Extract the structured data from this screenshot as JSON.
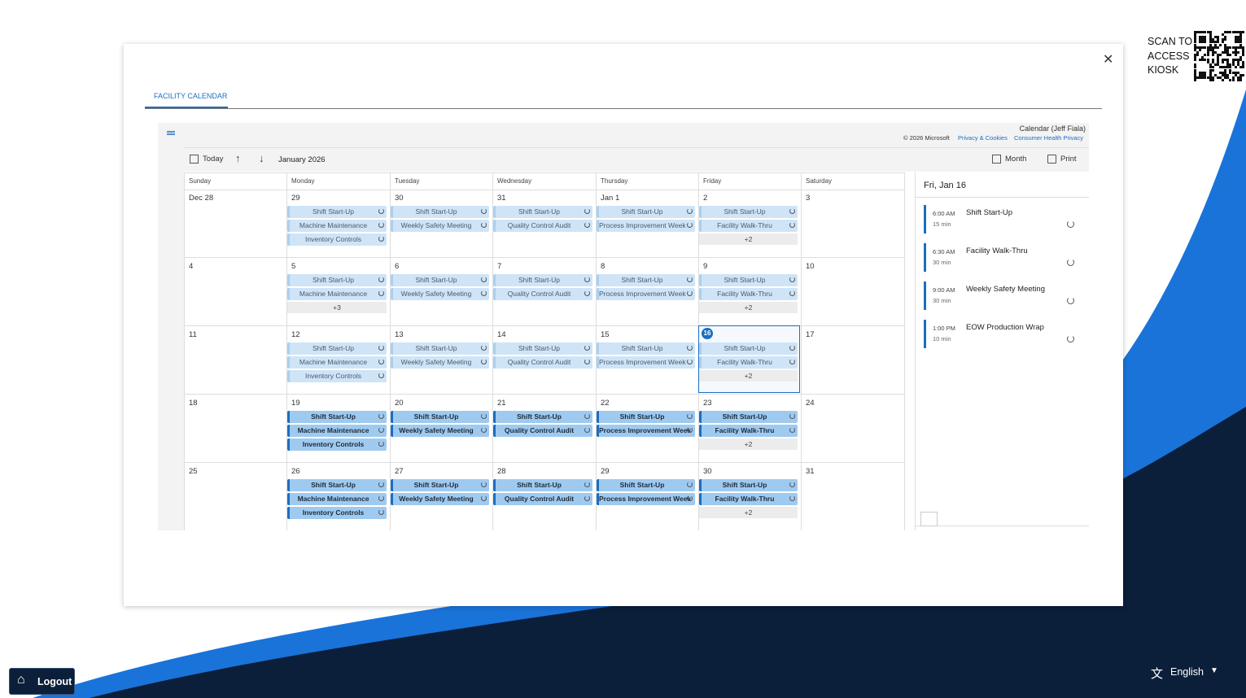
{
  "kiosk": {
    "scan_lines": [
      "SCAN TO",
      "ACCESS",
      "KIOSK"
    ]
  },
  "tab": "FACILITY CALENDAR",
  "calendar": {
    "owner": "Calendar (Jeff Fiala)",
    "copyright": "© 2026 Microsoft",
    "links": [
      "Privacy & Cookies",
      "Consumer Health Privacy"
    ],
    "toolbar": {
      "today": "Today",
      "month": "January 2026",
      "view": "Month",
      "print": "Print"
    },
    "weekdays": [
      "Sunday",
      "Monday",
      "Tuesday",
      "Wednesday",
      "Thursday",
      "Friday",
      "Saturday"
    ],
    "weeks": [
      [
        {
          "date": "Dec 28",
          "events": []
        },
        {
          "date": "29",
          "events": [
            "Shift Start-Up",
            "Machine Maintenance",
            "Inventory Controls"
          ]
        },
        {
          "date": "30",
          "events": [
            "Shift Start-Up",
            "Weekly Safety Meeting"
          ]
        },
        {
          "date": "31",
          "events": [
            "Shift Start-Up",
            "Quality Control Audit"
          ]
        },
        {
          "date": "Jan 1",
          "events": [
            "Shift Start-Up",
            "Process Improvement Week"
          ]
        },
        {
          "date": "2",
          "events": [
            "Shift Start-Up",
            "Facility Walk-Thru"
          ],
          "more": "+2"
        },
        {
          "date": "3",
          "events": []
        }
      ],
      [
        {
          "date": "4",
          "events": []
        },
        {
          "date": "5",
          "events": [
            "Shift Start-Up",
            "Machine Maintenance"
          ],
          "more": "+3"
        },
        {
          "date": "6",
          "events": [
            "Shift Start-Up",
            "Weekly Safety Meeting"
          ]
        },
        {
          "date": "7",
          "events": [
            "Shift Start-Up",
            "Quality Control Audit"
          ]
        },
        {
          "date": "8",
          "events": [
            "Shift Start-Up",
            "Process Improvement Week"
          ]
        },
        {
          "date": "9",
          "events": [
            "Shift Start-Up",
            "Facility Walk-Thru"
          ],
          "more": "+2"
        },
        {
          "date": "10",
          "events": []
        }
      ],
      [
        {
          "date": "11",
          "events": []
        },
        {
          "date": "12",
          "events": [
            "Shift Start-Up",
            "Machine Maintenance",
            "Inventory Controls"
          ]
        },
        {
          "date": "13",
          "events": [
            "Shift Start-Up",
            "Weekly Safety Meeting"
          ]
        },
        {
          "date": "14",
          "events": [
            "Shift Start-Up",
            "Quality Control Audit"
          ]
        },
        {
          "date": "15",
          "events": [
            "Shift Start-Up",
            "Process Improvement Week"
          ]
        },
        {
          "date": "16",
          "events": [
            "Shift Start-Up",
            "Facility Walk-Thru"
          ],
          "more": "+2"
        },
        {
          "date": "17",
          "events": []
        }
      ],
      [
        {
          "date": "18",
          "events": []
        },
        {
          "date": "19",
          "events": [
            "Shift Start-Up",
            "Machine Maintenance",
            "Inventory Controls"
          ]
        },
        {
          "date": "20",
          "events": [
            "Shift Start-Up",
            "Weekly Safety Meeting"
          ]
        },
        {
          "date": "21",
          "events": [
            "Shift Start-Up",
            "Quality Control Audit"
          ]
        },
        {
          "date": "22",
          "events": [
            "Shift Start-Up",
            "Process Improvement Week"
          ]
        },
        {
          "date": "23",
          "events": [
            "Shift Start-Up",
            "Facility Walk-Thru"
          ],
          "more": "+2"
        },
        {
          "date": "24",
          "events": []
        }
      ],
      [
        {
          "date": "25",
          "events": []
        },
        {
          "date": "26",
          "events": [
            "Shift Start-Up",
            "Machine Maintenance",
            "Inventory Controls"
          ]
        },
        {
          "date": "27",
          "events": [
            "Shift Start-Up",
            "Weekly Safety Meeting"
          ]
        },
        {
          "date": "28",
          "events": [
            "Shift Start-Up",
            "Quality Control Audit"
          ]
        },
        {
          "date": "29",
          "events": [
            "Shift Start-Up",
            "Process Improvement Week"
          ]
        },
        {
          "date": "30",
          "events": [
            "Shift Start-Up",
            "Facility Walk-Thru"
          ],
          "more": "+2"
        },
        {
          "date": "31",
          "events": []
        }
      ]
    ],
    "agenda": {
      "title": "Fri, Jan 16",
      "items": [
        {
          "time": "6:00 AM",
          "duration": "15 min",
          "title": "Shift Start-Up"
        },
        {
          "time": "6:30 AM",
          "duration": "30 min",
          "title": "Facility Walk-Thru"
        },
        {
          "time": "9:00 AM",
          "duration": "30 min",
          "title": "Weekly Safety Meeting"
        },
        {
          "time": "1:00 PM",
          "duration": "10 min",
          "title": "EOW Production Wrap"
        }
      ]
    }
  },
  "footer": {
    "logout": "Logout",
    "language": "English"
  }
}
